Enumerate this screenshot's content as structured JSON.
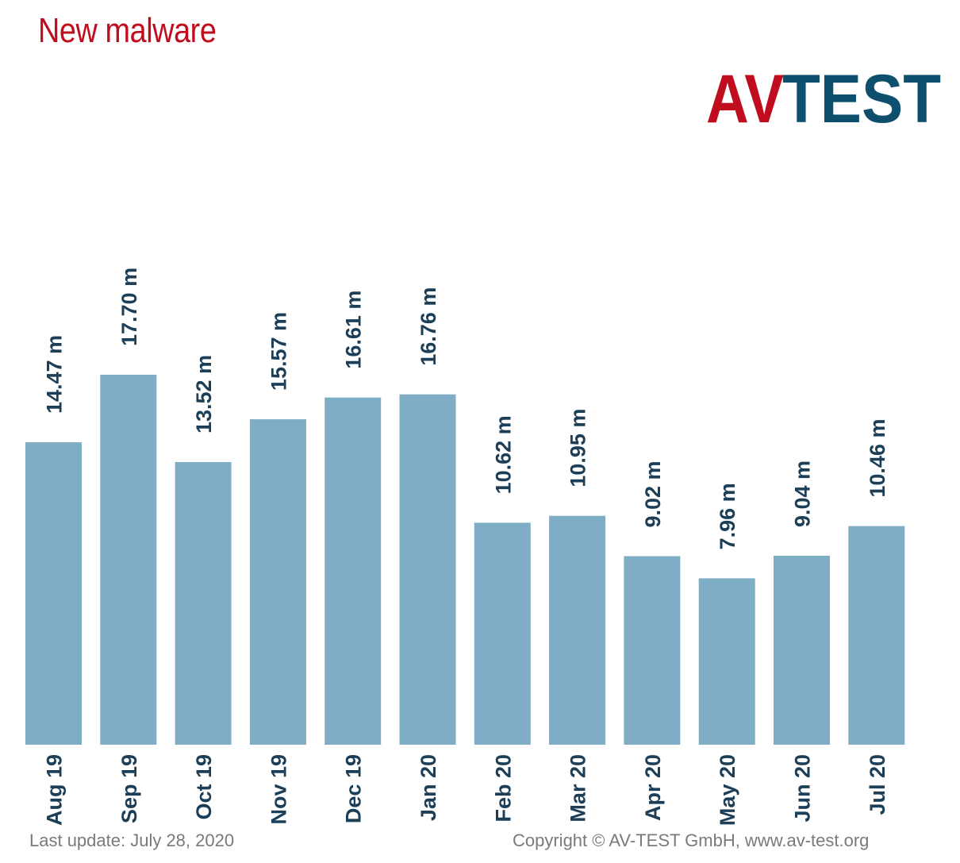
{
  "header": {
    "title": "New malware"
  },
  "logo": {
    "text_red": "AV",
    "text_blue": "TEST",
    "colors": {
      "red": "#c00d1e",
      "blue": "#0e4f6e"
    }
  },
  "footer": {
    "last_update": "Last update: July 28, 2020",
    "copyright": "Copyright © AV-TEST GmbH, www.av-test.org"
  },
  "chart_data": {
    "type": "bar",
    "categories": [
      "Aug 19",
      "Sep 19",
      "Oct 19",
      "Nov 19",
      "Dec 19",
      "Jan 20",
      "Feb 20",
      "Mar 20",
      "Apr 20",
      "May 20",
      "Jun 20",
      "Jul 20"
    ],
    "values": [
      14.47,
      17.7,
      13.52,
      15.57,
      16.61,
      16.76,
      10.62,
      10.95,
      9.02,
      7.96,
      9.04,
      10.46
    ],
    "value_labels": [
      "14.47 m",
      "17.70 m",
      "13.52 m",
      "15.57 m",
      "16.61 m",
      "16.76 m",
      "10.62 m",
      "10.95 m",
      "9.02 m",
      "7.96 m",
      "9.04 m",
      "10.46 m"
    ],
    "title": "New malware",
    "xlabel": "",
    "ylabel": "",
    "ylim": [
      0,
      17.7
    ],
    "grid": false,
    "bar_color": "#80adc6",
    "label_color": "#1c3f57"
  }
}
